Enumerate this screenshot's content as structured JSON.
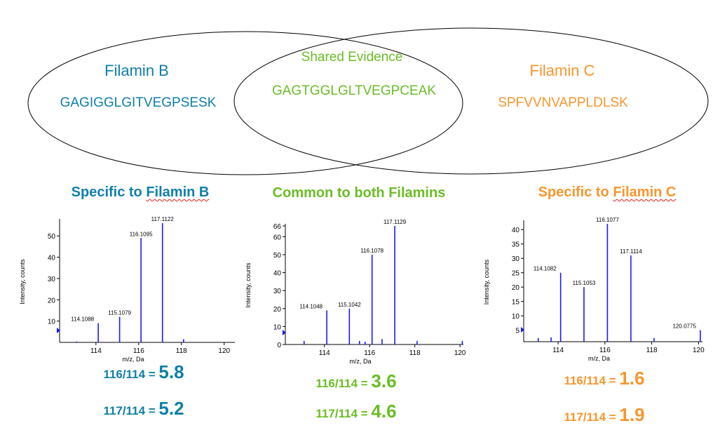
{
  "venn": {
    "left": {
      "title": "Filamin B",
      "sequence": "GAGIGGLGITVEGPSESK"
    },
    "shared": {
      "title": "Shared Evidence",
      "sequence": "GAGTGGLGLTVEGPCEAK"
    },
    "right": {
      "title": "Filamin C",
      "sequence": "SPFVVNVAPPLDLSK"
    }
  },
  "headings": {
    "b": {
      "prefix": "Specific to ",
      "name": "Filamin B"
    },
    "common": {
      "text": "Common to both Filamins"
    },
    "c": {
      "prefix": "Specific to ",
      "name": "Filamin C"
    }
  },
  "ratios": {
    "b": [
      {
        "label": "116/114 = ",
        "value": "5.8"
      },
      {
        "label": "117/114 = ",
        "value": "5.2"
      }
    ],
    "common": [
      {
        "label": "116/114 = ",
        "value": "3.6"
      },
      {
        "label": "117/114 = ",
        "value": "4.6"
      }
    ],
    "c": [
      {
        "label": "116/114 = ",
        "value": "1.6"
      },
      {
        "label": "117/114 = ",
        "value": "1.9"
      }
    ]
  },
  "colors": {
    "b": "#0f7fa8",
    "common": "#6bbd26",
    "c": "#f7962d",
    "peak": "#1a1aff"
  },
  "chart_data": [
    {
      "type": "bar",
      "xlabel": "m/z, Da",
      "ylabel": "Intensity, counts",
      "xlim": [
        112.3,
        120.5
      ],
      "ylim": [
        0,
        57
      ],
      "xticks": [
        114,
        116,
        118,
        120
      ],
      "yticks": [
        10,
        20,
        30,
        40,
        50
      ],
      "peaks": [
        {
          "x": 114.1088,
          "y": 9,
          "label": "114.1088"
        },
        {
          "x": 115.1079,
          "y": 12,
          "label": "115.1079"
        },
        {
          "x": 116.1095,
          "y": 49,
          "label": "116.1095"
        },
        {
          "x": 117.1122,
          "y": 56,
          "label": "117.1122"
        },
        {
          "x": 118.1,
          "y": 1.5,
          "label": ""
        },
        {
          "x": 113.1,
          "y": 0.4,
          "label": ""
        }
      ]
    },
    {
      "type": "bar",
      "xlabel": "m/z, Da",
      "ylabel": "Intensity, counts",
      "xlim": [
        112.27,
        120.15
      ],
      "ylim": [
        0,
        66
      ],
      "xticks": [
        114,
        116,
        118,
        120
      ],
      "yticks": [
        0,
        10,
        20,
        30,
        40,
        50,
        60,
        66
      ],
      "peaks": [
        {
          "x": 114.1048,
          "y": 19,
          "label": "114.1048"
        },
        {
          "x": 115.1042,
          "y": 20,
          "label": "115.1042"
        },
        {
          "x": 116.1078,
          "y": 50,
          "label": "116.1078"
        },
        {
          "x": 117.1129,
          "y": 66,
          "label": "117.1129"
        },
        {
          "x": 113.1,
          "y": 2,
          "label": ""
        },
        {
          "x": 115.55,
          "y": 2,
          "label": ""
        },
        {
          "x": 115.8,
          "y": 1.5,
          "label": ""
        },
        {
          "x": 116.55,
          "y": 3,
          "label": ""
        },
        {
          "x": 118.1,
          "y": 2,
          "label": ""
        },
        {
          "x": 120.1,
          "y": 2,
          "label": ""
        }
      ]
    },
    {
      "type": "bar",
      "xlabel": "m/z, Da",
      "ylabel": "Intensity, counts",
      "xlim": [
        112.53,
        120.17
      ],
      "ylim": [
        1,
        42.5
      ],
      "xticks": [
        114,
        116,
        118,
        120
      ],
      "yticks": [
        5,
        10,
        15,
        20,
        25,
        30,
        35,
        40
      ],
      "peaks": [
        {
          "x": 114.1082,
          "y": 25,
          "label": "114.1082"
        },
        {
          "x": 115.1053,
          "y": 20,
          "label": "115.1053"
        },
        {
          "x": 116.1077,
          "y": 42,
          "label": "116.1077"
        },
        {
          "x": 117.1114,
          "y": 31,
          "label": "117.1114"
        },
        {
          "x": 120.0775,
          "y": 5,
          "label": "120.0775"
        },
        {
          "x": 113.15,
          "y": 2.3,
          "label": ""
        },
        {
          "x": 113.7,
          "y": 2.5,
          "label": ""
        },
        {
          "x": 118.1,
          "y": 2.3,
          "label": ""
        }
      ]
    }
  ]
}
